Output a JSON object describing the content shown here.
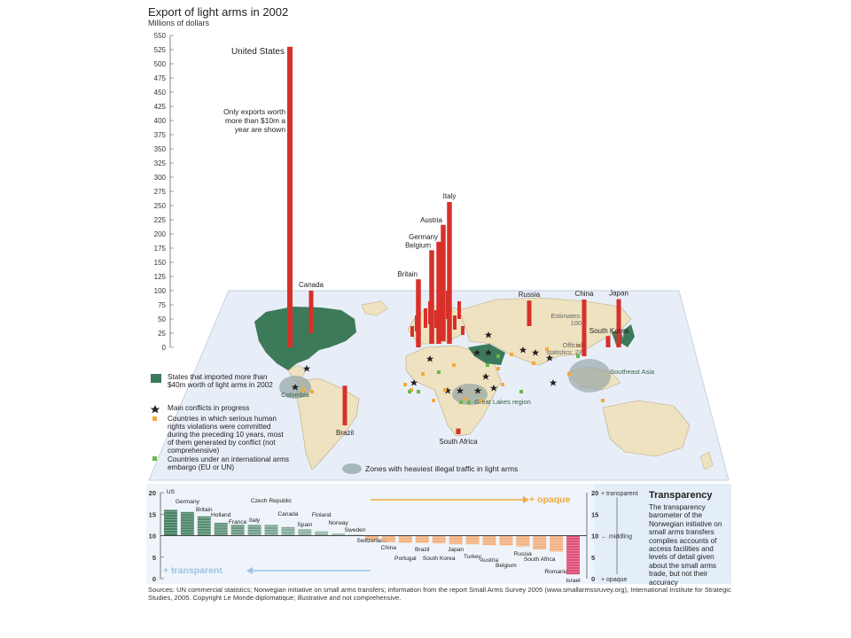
{
  "title": "Export of light arms in 2002",
  "subtitle": "Millions of dollars",
  "chart_data": [
    {
      "type": "bar",
      "title": "Export of light arms in 2002",
      "ylabel": "Millions of dollars",
      "ylim": [
        0,
        550
      ],
      "yticks": [
        0,
        25,
        50,
        75,
        100,
        125,
        150,
        175,
        200,
        225,
        250,
        275,
        300,
        325,
        350,
        375,
        400,
        425,
        450,
        475,
        500,
        525,
        550
      ],
      "annotation_note": "Only exports worth more than $10m a year are shown",
      "china_estimates_label": "Estimates: 100",
      "china_official_label": "Official statistics: 22",
      "categories": [
        "United States",
        "Canada",
        "Brazil",
        "Britain",
        "Belgium",
        "Germany",
        "Austria",
        "Italy",
        "Russia",
        "China",
        "Japan",
        "South Korea",
        "South Africa"
      ],
      "values": [
        530,
        75,
        70,
        120,
        165,
        180,
        205,
        250,
        45,
        100,
        85,
        20,
        10
      ],
      "bar_color": "#d7302a"
    },
    {
      "type": "bar",
      "title": "Transparency",
      "description": "The transparency barometer of the Norwegian initiative on small arms transfers compiles accounts of access facilities and levels of detail given about the small arms trade, but not their accuracy",
      "ylim": [
        0,
        20
      ],
      "yticks": [
        0,
        5,
        10,
        15,
        20
      ],
      "right_axis": {
        "top": "20 + transparent",
        "middle": "10 ← middling",
        "bottom": "0 + opaque"
      },
      "opaque_label": "+ opaque",
      "transparent_label": "+ transparent",
      "categories": [
        "US",
        "Germany",
        "Britain",
        "Holland",
        "France",
        "Italy",
        "Czech Republic",
        "Canada",
        "Spain",
        "Finland",
        "Norway",
        "Sweden",
        "Switzerland",
        "China",
        "Portugal",
        "Brazil",
        "South Korea",
        "Japan",
        "Turkey",
        "Austria",
        "Belgium",
        "Russia",
        "South Africa",
        "Romania",
        "Israel"
      ],
      "values": [
        16,
        15.5,
        14.5,
        13,
        12.5,
        12.5,
        12.5,
        12,
        11.5,
        11,
        10.5,
        10.2,
        9,
        8.5,
        8.3,
        8.3,
        8.2,
        8,
        8,
        7.8,
        7.7,
        7.5,
        6.8,
        6.3,
        1
      ]
    }
  ],
  "map": {
    "country_labels": [
      "Canada",
      "Brazil",
      "South Africa",
      "Britain",
      "Belgium",
      "Germany",
      "Austria",
      "Italy",
      "Russia",
      "China",
      "Japan",
      "South Korea",
      "United States"
    ],
    "zone_labels": [
      "Colombia",
      "Great Lakes region",
      "Southeast Asia"
    ],
    "colors": {
      "ocean": "#e8eef7",
      "land": "#efe2c0",
      "importers": "#3c7a5a",
      "conflict": "#222222",
      "rights": "#f3a93c",
      "embargo": "#67b84c",
      "zone": "#8c9fa0"
    }
  },
  "legend": {
    "importers": "States that imported more than $40m worth of light arms in 2002",
    "conflicts": "Main conflicts in progress",
    "rights": "Countries in which serious human rights violations were committed during the preceding 10 years, most of them generated by conflict (not comprehensive)",
    "embargo": "Countries under an international arms embargo (EU or UN)",
    "zones": "Zones with heaviest illegal traffic in light arms"
  },
  "sources": "Sources: UN commercial statistics; Norwegian initiative on small arms transfers; information from the report Small Arms Survey 2005 (www.smallarmssruvey.org), International Institute for Strategic Studies, 2005. Copyright Le Monde diplomatique; illustrative and not comprehensive."
}
